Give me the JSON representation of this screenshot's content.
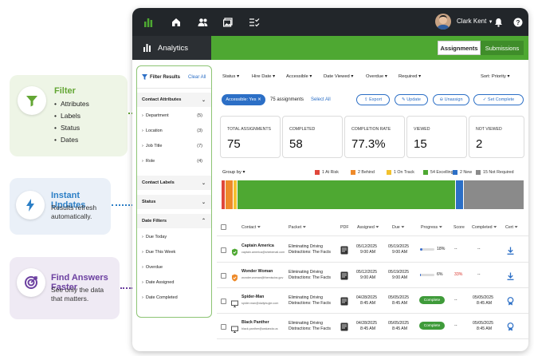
{
  "callouts": {
    "filter": {
      "title": "Filter",
      "items": [
        "Attributes",
        "Labels",
        "Status",
        "Dates"
      ],
      "color": "#63a634"
    },
    "updates": {
      "title": "Instant Updates",
      "text_line1": "Results refresh",
      "text_line2": "automatically.",
      "color": "#2c7fc6"
    },
    "answers": {
      "title": "Find Answers Faster",
      "text_line1": "See only the data",
      "text_line2": "that matters.",
      "color": "#6b3fa0"
    }
  },
  "topbar": {
    "user_name": "Clark Kent"
  },
  "subbar": {
    "title": "Analytics",
    "tabs": [
      "Assignments",
      "Submissions"
    ]
  },
  "sidebar": {
    "title": "Filter Results",
    "clear_all": "Clear All",
    "sections": {
      "contact_attributes": "Contact Attributes",
      "contact_labels": "Contact Labels",
      "status": "Status",
      "date_filters": "Date Filters"
    },
    "attributes": [
      {
        "label": "Department",
        "count": "(5)"
      },
      {
        "label": "Location",
        "count": "(3)"
      },
      {
        "label": "Job Title",
        "count": "(7)"
      },
      {
        "label": "Role",
        "count": "(4)"
      }
    ],
    "date_filters": [
      "Due Today",
      "Due This Week",
      "Overdue",
      "Date Assigned",
      "Date Completed"
    ]
  },
  "filters": [
    "Status",
    "Hire Date",
    "Accessible",
    "Date Viewed",
    "Overdue",
    "Required"
  ],
  "sort": "Sort: Priority",
  "toolbar": {
    "chip": "Accessible: Yes",
    "count_text": "75 assignments",
    "select_all": "Select All",
    "buttons": [
      "Export",
      "Update",
      "Unassign",
      "Set Complete"
    ]
  },
  "stats": [
    {
      "label": "TOTAL ASSIGNMENTS",
      "value": "75"
    },
    {
      "label": "COMPLETED",
      "value": "58"
    },
    {
      "label": "COMPLETION RATE",
      "value": "77.3%"
    },
    {
      "label": "VIEWED",
      "value": "15"
    },
    {
      "label": "NOT VIEWED",
      "value": "2"
    }
  ],
  "group_by": "Group by",
  "legend": [
    {
      "label": "1 At Risk",
      "color": "#e0473b",
      "value": 1
    },
    {
      "label": "2 Behind",
      "color": "#ee8a2a",
      "value": 2
    },
    {
      "label": "1 On Track",
      "color": "#f2c12e",
      "value": 1
    },
    {
      "label": "54 Excelling",
      "color": "#4ea832",
      "value": 54
    },
    {
      "label": "2 New",
      "color": "#2c6fc6",
      "value": 2
    },
    {
      "label": "15 Not Required",
      "color": "#8a8a8a",
      "value": 15
    }
  ],
  "table": {
    "headers": [
      "Contact",
      "Packet",
      "PDF",
      "Assigned",
      "Due",
      "Progress",
      "Score",
      "Completed",
      "Cert"
    ],
    "rows": [
      {
        "name": "Captain America",
        "email": "captain.america@shieldmail.com",
        "packet1": "Eliminating Driving",
        "packet2": "Distractions: The Facts",
        "assigned_date": "05/12/2025",
        "assigned_time": "9:00 AM",
        "due_date": "05/19/2025",
        "due_time": "9:00 AM",
        "progress": "18%",
        "progress_value": 18,
        "score": "--",
        "completed_date": "--",
        "completed_time": "",
        "status_color": "#4ea832",
        "score_color": "#222",
        "complete": false
      },
      {
        "name": "Wonder Woman",
        "email": "wonder.woman@themiscira.gov",
        "packet1": "Eliminating Driving",
        "packet2": "Distractions: The Facts",
        "assigned_date": "05/12/2025",
        "assigned_time": "9:00 AM",
        "due_date": "05/19/2025",
        "due_time": "9:00 AM",
        "progress": "6%",
        "progress_value": 6,
        "score": "33%",
        "completed_date": "--",
        "completed_time": "",
        "status_color": "#ee8a2a",
        "score_color": "#d9332b",
        "complete": false
      },
      {
        "name": "Spider-Man",
        "email": "spider.man@dailybugle.com",
        "packet1": "Eliminating Driving",
        "packet2": "Distractions: The Facts",
        "assigned_date": "04/28/2025",
        "assigned_time": "8:45 AM",
        "due_date": "05/05/2025",
        "due_time": "8:45 AM",
        "progress": "Complete",
        "progress_value": 100,
        "score": "--",
        "completed_date": "05/05/2025",
        "completed_time": "8:45 AM",
        "status_color": "#555",
        "score_color": "#222",
        "complete": true
      },
      {
        "name": "Black Panther",
        "email": "black.panther@wakanda.us",
        "packet1": "Eliminating Driving",
        "packet2": "Distractions: The Facts",
        "assigned_date": "04/28/2025",
        "assigned_time": "8:45 AM",
        "due_date": "05/05/2025",
        "due_time": "8:45 AM",
        "progress": "Complete",
        "progress_value": 100,
        "score": "--",
        "completed_date": "05/05/2025",
        "completed_time": "8:45 AM",
        "status_color": "#555",
        "score_color": "#222",
        "complete": true
      }
    ]
  }
}
